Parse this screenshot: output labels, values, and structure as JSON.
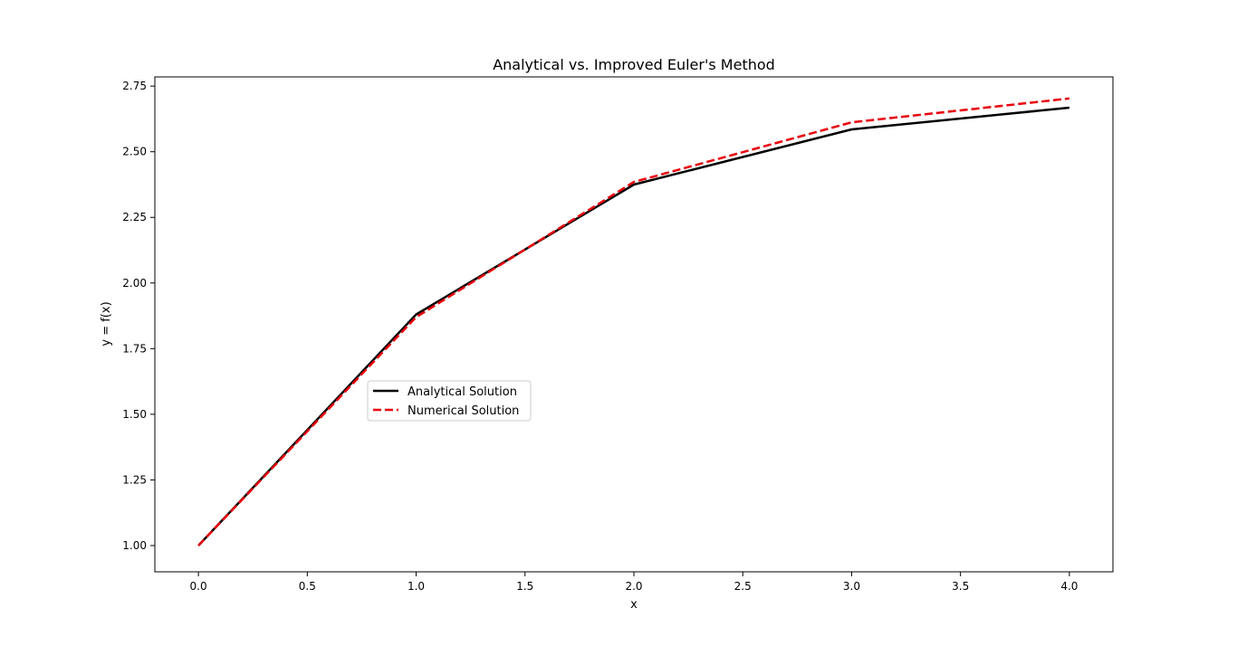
{
  "chart_data": {
    "type": "line",
    "title": "Analytical vs. Improved Euler's Method",
    "xlabel": "x",
    "ylabel": "y = f(x)",
    "xlim": [
      -0.2,
      4.2
    ],
    "ylim": [
      0.9,
      2.785
    ],
    "xticks": [
      0.0,
      0.5,
      1.0,
      1.5,
      2.0,
      2.5,
      3.0,
      3.5,
      4.0
    ],
    "xtick_labels": [
      "0.0",
      "0.5",
      "1.0",
      "1.5",
      "2.0",
      "2.5",
      "3.0",
      "3.5",
      "4.0"
    ],
    "yticks": [
      1.0,
      1.25,
      1.5,
      1.75,
      2.0,
      2.25,
      2.5,
      2.75
    ],
    "ytick_labels": [
      "1.00",
      "1.25",
      "1.50",
      "1.75",
      "2.00",
      "2.25",
      "2.50",
      "2.75"
    ],
    "grid": false,
    "legend_position": "center-left",
    "x": [
      0,
      1,
      2,
      3,
      4
    ],
    "series": [
      {
        "name": "Analytical Solution",
        "color": "#000000",
        "dash": "solid",
        "values": [
          1.0,
          1.88,
          2.375,
          2.585,
          2.668
        ]
      },
      {
        "name": "Numerical Solution",
        "color": "#e8000b",
        "dash": "dashed",
        "values": [
          1.0,
          1.87,
          2.385,
          2.612,
          2.703
        ]
      }
    ]
  }
}
